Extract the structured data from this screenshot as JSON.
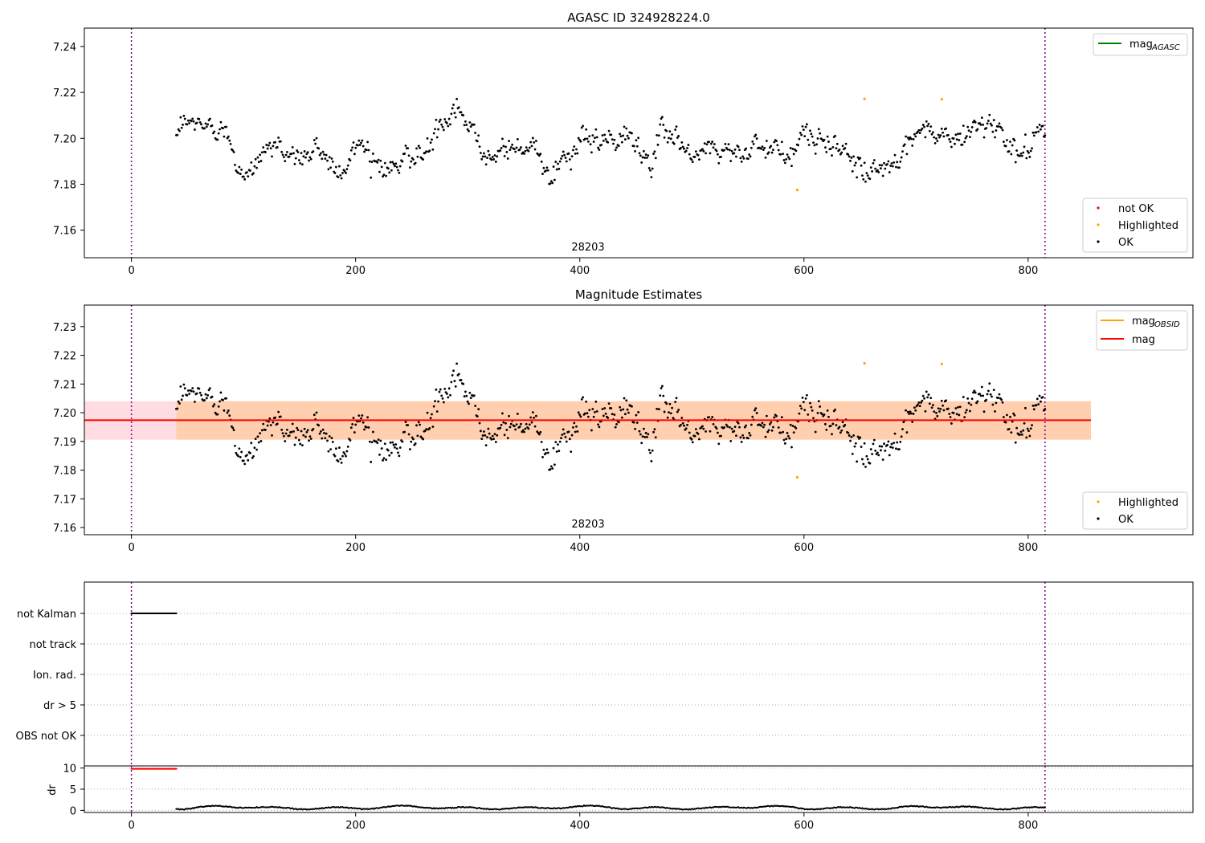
{
  "chart_data": [
    {
      "type": "scatter",
      "title": "AGASC ID 324928224.0",
      "ylim": [
        7.148,
        7.248
      ],
      "xlim": [
        -42,
        947
      ],
      "xticks": [
        0,
        200,
        400,
        600,
        800
      ],
      "yticks": [
        7.16,
        7.18,
        7.2,
        7.22,
        7.24
      ],
      "ytick_labels": [
        "7.16",
        "7.18",
        "7.20",
        "7.22",
        "7.24"
      ],
      "vlines": [
        0,
        815
      ],
      "obsid_label": "28203",
      "obsid_label_x": 407,
      "legend_top": {
        "placement": "top-right",
        "entries": [
          {
            "label_main": "mag",
            "label_sub": "AGASC",
            "color": "#008000"
          }
        ]
      },
      "legend_bottom": {
        "placement": "bottom-right",
        "entries": [
          {
            "label": "not OK",
            "color": "#ff0000"
          },
          {
            "label": "Highlighted",
            "color": "#ffa500"
          },
          {
            "label": "OK",
            "color": "#000000"
          }
        ]
      },
      "series": [
        {
          "name": "OK",
          "color": "#000000",
          "x_range": [
            40,
            815
          ],
          "n": 800,
          "baseline": 7.197,
          "noise": 0.004
        },
        {
          "name": "Highlighted",
          "color": "#ffa500",
          "points": [
            [
              594,
              7.1775
            ],
            [
              654,
              7.2172
            ],
            [
              723,
              7.217
            ]
          ]
        }
      ]
    },
    {
      "type": "scatter",
      "title": "Magnitude Estimates",
      "ylim": [
        7.1575,
        7.2375
      ],
      "xlim": [
        -42,
        947
      ],
      "xticks": [
        0,
        200,
        400,
        600,
        800
      ],
      "yticks": [
        7.16,
        7.17,
        7.18,
        7.19,
        7.2,
        7.21,
        7.22,
        7.23
      ],
      "ytick_labels": [
        "7.16",
        "7.17",
        "7.18",
        "7.19",
        "7.20",
        "7.21",
        "7.22",
        "7.23"
      ],
      "vlines": [
        0,
        815
      ],
      "obsid_label": "28203",
      "obsid_label_x": 407,
      "mag_line": 7.1974,
      "mag_band": [
        7.1906,
        7.204
      ],
      "mag_band_x": [
        -42,
        856
      ],
      "obsid_band_x": [
        40,
        856
      ],
      "legend_top": {
        "placement": "top-right",
        "entries": [
          {
            "label_main": "mag",
            "label_sub": "OBSID",
            "color": "#ffa500"
          },
          {
            "label_main": "mag",
            "label_sub": "",
            "color": "#ff0000"
          }
        ]
      },
      "legend_bottom": {
        "placement": "bottom-right",
        "entries": [
          {
            "label": "Highlighted",
            "color": "#ffa500"
          },
          {
            "label": "OK",
            "color": "#000000"
          }
        ]
      }
    },
    {
      "type": "scatter",
      "title": "",
      "flags": [
        "not Kalman",
        "not track",
        "Ion. rad.",
        "dr > 5",
        "OBS not OK"
      ],
      "flag_points": {
        "label": "not Kalman",
        "x_range": [
          0,
          40
        ],
        "color": "#000000"
      },
      "xlim": [
        -42,
        947
      ],
      "vlines": [
        0,
        815
      ]
    },
    {
      "type": "line",
      "ylabel": "dr",
      "ylim": [
        -0.5,
        10.5
      ],
      "yticks": [
        0,
        5,
        10
      ],
      "ytick_labels": [
        "0",
        "5",
        "10"
      ],
      "xticks": [
        0,
        200,
        400,
        600,
        800
      ],
      "xlim": [
        -42,
        947
      ],
      "vlines": [
        0,
        815
      ],
      "red_points": {
        "x_range": [
          0,
          40
        ],
        "y": 10,
        "color": "#ff0000"
      },
      "dr_series": {
        "x_range": [
          40,
          815
        ],
        "typical": 0.4,
        "color": "#000000"
      }
    }
  ]
}
